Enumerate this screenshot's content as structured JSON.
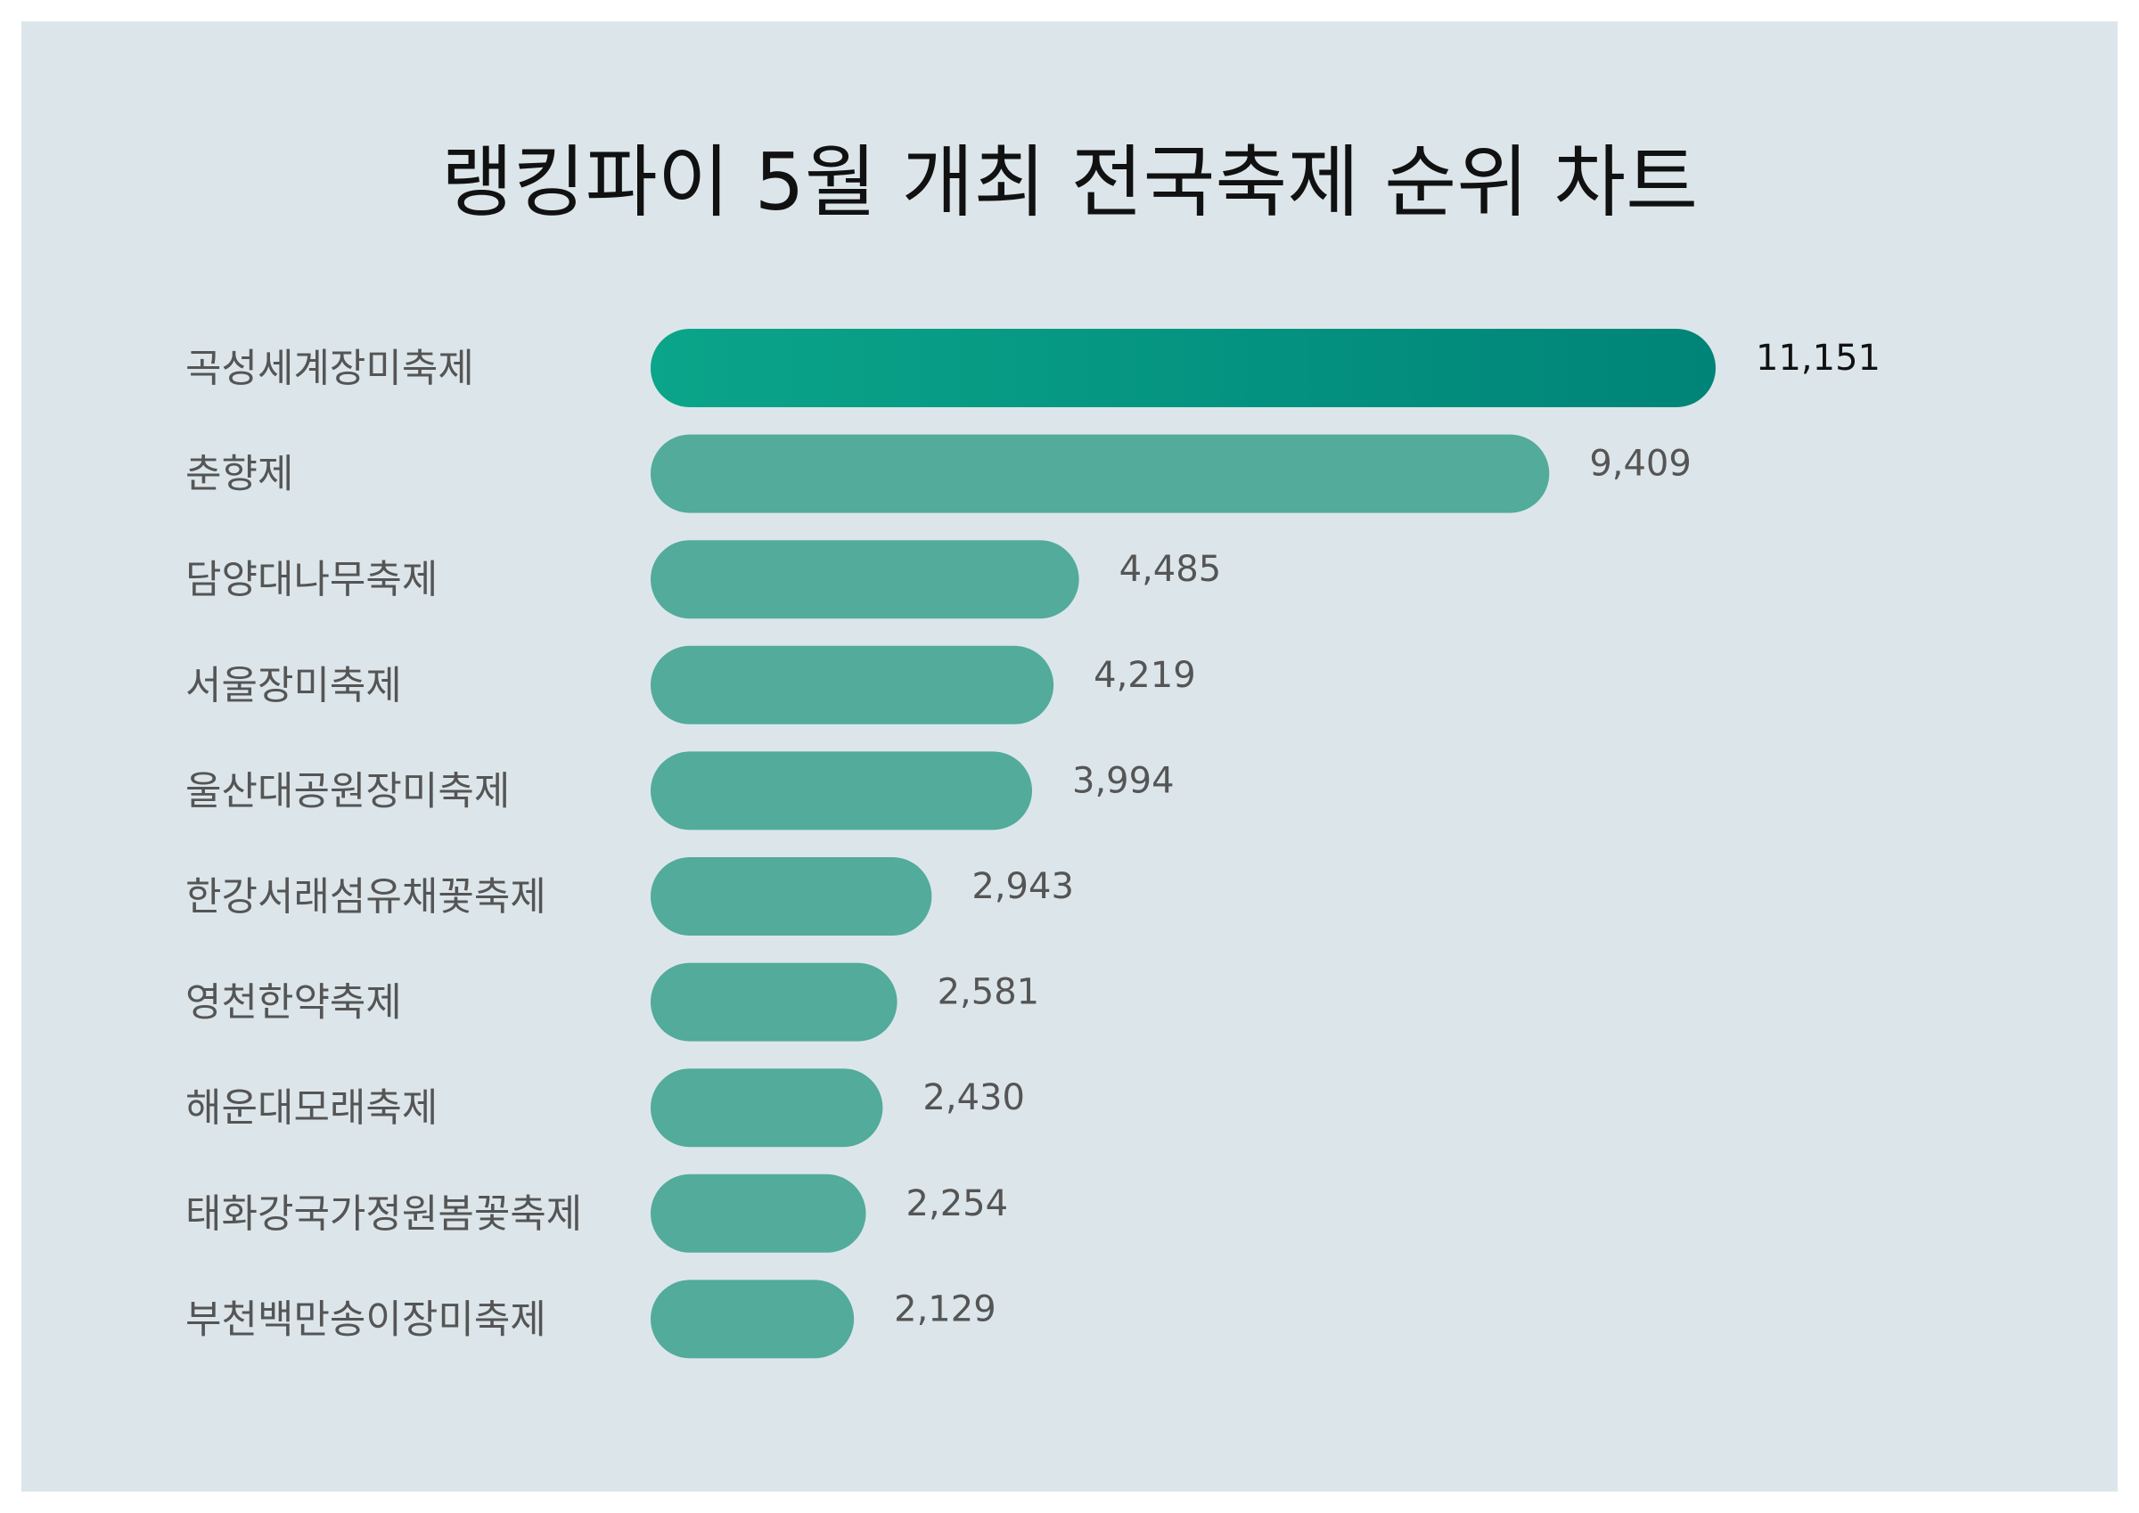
{
  "chart_data": {
    "type": "bar",
    "orientation": "horizontal",
    "title": "랭킹파이 5월 개최 전국축제 순위 차트",
    "categories": [
      "곡성세계장미축제",
      "춘향제",
      "담양대나무축제",
      "서울장미축제",
      "울산대공원장미축제",
      "한강서래섬유채꽃축제",
      "영천한약축제",
      "해운대모래축제",
      "태화강국가정원봄꽃축제",
      "부천백만송이장미축제"
    ],
    "values": [
      11151,
      9409,
      4485,
      4219,
      3994,
      2943,
      2581,
      2430,
      2254,
      2129
    ],
    "value_labels": [
      "11,151",
      "9,409",
      "4,485",
      "4,219",
      "3,994",
      "2,943",
      "2,581",
      "2,430",
      "2,254",
      "2,129"
    ],
    "xlim": [
      0,
      11151
    ],
    "grid": false,
    "legend": "none",
    "colors": {
      "background": "#dce6ea",
      "bar": "#52ab9b",
      "top_bar_start": "#0aa58a",
      "top_bar_end": "#008478",
      "label": "#555555",
      "top_value_label": "#111111"
    }
  }
}
